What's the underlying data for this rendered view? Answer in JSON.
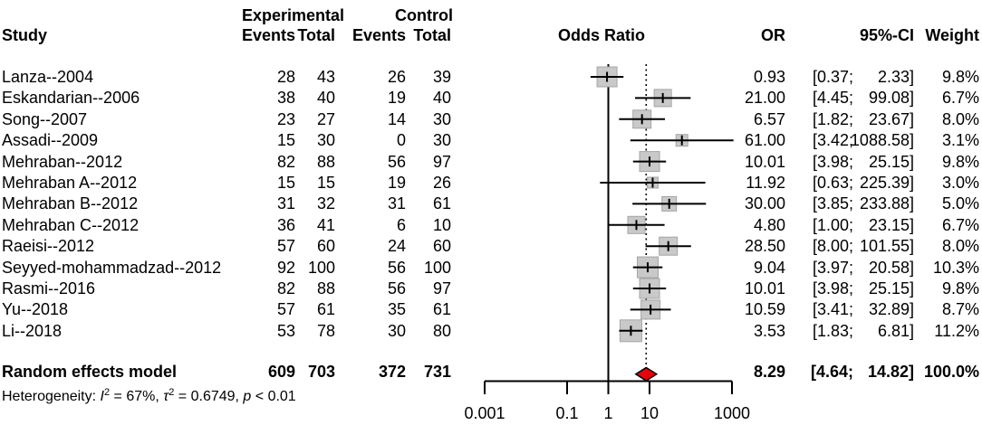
{
  "header": {
    "study": "Study",
    "experimental": "Experimental",
    "control": "Control",
    "events": "Events",
    "total": "Total",
    "odds_ratio": "Odds Ratio",
    "or": "OR",
    "ci": "95%-CI",
    "weight": "Weight"
  },
  "chart_data": {
    "type": "forest",
    "x_scale": "log10",
    "x_axis": {
      "tick_labels": [
        "0.001",
        "0.1",
        "1",
        "10",
        "1000"
      ],
      "tick_values": [
        0.001,
        0.1,
        1,
        10,
        1000
      ],
      "ref_line": 1,
      "summary_dotted_line": 8.29
    },
    "studies": [
      {
        "name": "Lanza--2004",
        "exp_events": "28",
        "exp_total": "43",
        "ctrl_events": "26",
        "ctrl_total": "39",
        "or": 0.93,
        "ci_low": 0.37,
        "ci_high": 2.33,
        "or_text": "0.93",
        "ci_low_text": "[0.37;",
        "ci_high_text": "2.33]",
        "weight": 9.8,
        "weight_text": "9.8%"
      },
      {
        "name": "Eskandarian--2006",
        "exp_events": "38",
        "exp_total": "40",
        "ctrl_events": "19",
        "ctrl_total": "40",
        "or": 21.0,
        "ci_low": 4.45,
        "ci_high": 99.08,
        "or_text": "21.00",
        "ci_low_text": "[4.45;",
        "ci_high_text": "99.08]",
        "weight": 6.7,
        "weight_text": "6.7%"
      },
      {
        "name": "Song--2007",
        "exp_events": "23",
        "exp_total": "27",
        "ctrl_events": "14",
        "ctrl_total": "30",
        "or": 6.57,
        "ci_low": 1.82,
        "ci_high": 23.67,
        "or_text": "6.57",
        "ci_low_text": "[1.82;",
        "ci_high_text": "23.67]",
        "weight": 8.0,
        "weight_text": "8.0%"
      },
      {
        "name": "Assadi--2009",
        "exp_events": "15",
        "exp_total": "30",
        "ctrl_events": "0",
        "ctrl_total": "30",
        "or": 61.0,
        "ci_low": 3.42,
        "ci_high": 1088.58,
        "or_text": "61.00",
        "ci_low_text": "[3.42;",
        "ci_high_text": "1088.58]",
        "weight": 3.1,
        "weight_text": "3.1%"
      },
      {
        "name": "Mehraban--2012",
        "exp_events": "82",
        "exp_total": "88",
        "ctrl_events": "56",
        "ctrl_total": "97",
        "or": 10.01,
        "ci_low": 3.98,
        "ci_high": 25.15,
        "or_text": "10.01",
        "ci_low_text": "[3.98;",
        "ci_high_text": "25.15]",
        "weight": 9.8,
        "weight_text": "9.8%"
      },
      {
        "name": "Mehraban A--2012",
        "exp_events": "15",
        "exp_total": "15",
        "ctrl_events": "19",
        "ctrl_total": "26",
        "or": 11.92,
        "ci_low": 0.63,
        "ci_high": 225.39,
        "or_text": "11.92",
        "ci_low_text": "[0.63;",
        "ci_high_text": "225.39]",
        "weight": 3.0,
        "weight_text": "3.0%"
      },
      {
        "name": "Mehraban B--2012",
        "exp_events": "31",
        "exp_total": "32",
        "ctrl_events": "31",
        "ctrl_total": "61",
        "or": 30.0,
        "ci_low": 3.85,
        "ci_high": 233.88,
        "or_text": "30.00",
        "ci_low_text": "[3.85;",
        "ci_high_text": "233.88]",
        "weight": 5.0,
        "weight_text": "5.0%"
      },
      {
        "name": "Mehraban C--2012",
        "exp_events": "36",
        "exp_total": "41",
        "ctrl_events": "6",
        "ctrl_total": "10",
        "or": 4.8,
        "ci_low": 1.0,
        "ci_high": 23.15,
        "or_text": "4.80",
        "ci_low_text": "[1.00;",
        "ci_high_text": "23.15]",
        "weight": 6.7,
        "weight_text": "6.7%"
      },
      {
        "name": "Raeisi--2012",
        "exp_events": "57",
        "exp_total": "60",
        "ctrl_events": "24",
        "ctrl_total": "60",
        "or": 28.5,
        "ci_low": 8.0,
        "ci_high": 101.55,
        "or_text": "28.50",
        "ci_low_text": "[8.00;",
        "ci_high_text": "101.55]",
        "weight": 8.0,
        "weight_text": "8.0%"
      },
      {
        "name": "Seyyed-mohammadzad--2012",
        "exp_events": "92",
        "exp_total": "100",
        "ctrl_events": "56",
        "ctrl_total": "100",
        "or": 9.04,
        "ci_low": 3.97,
        "ci_high": 20.58,
        "or_text": "9.04",
        "ci_low_text": "[3.97;",
        "ci_high_text": "20.58]",
        "weight": 10.3,
        "weight_text": "10.3%"
      },
      {
        "name": "Rasmi--2016",
        "exp_events": "82",
        "exp_total": "88",
        "ctrl_events": "56",
        "ctrl_total": "97",
        "or": 10.01,
        "ci_low": 3.98,
        "ci_high": 25.15,
        "or_text": "10.01",
        "ci_low_text": "[3.98;",
        "ci_high_text": "25.15]",
        "weight": 9.8,
        "weight_text": "9.8%"
      },
      {
        "name": "Yu--2018",
        "exp_events": "57",
        "exp_total": "61",
        "ctrl_events": "35",
        "ctrl_total": "61",
        "or": 10.59,
        "ci_low": 3.41,
        "ci_high": 32.89,
        "or_text": "10.59",
        "ci_low_text": "[3.41;",
        "ci_high_text": "32.89]",
        "weight": 8.7,
        "weight_text": "8.7%"
      },
      {
        "name": "Li--2018",
        "exp_events": "53",
        "exp_total": "78",
        "ctrl_events": "30",
        "ctrl_total": "80",
        "or": 3.53,
        "ci_low": 1.83,
        "ci_high": 6.81,
        "or_text": "3.53",
        "ci_low_text": "[1.83;",
        "ci_high_text": "6.81]",
        "weight": 11.2,
        "weight_text": "11.2%"
      }
    ],
    "summary": {
      "label": "Random effects model",
      "exp_events": "609",
      "exp_total": "703",
      "ctrl_events": "372",
      "ctrl_total": "731",
      "or": 8.29,
      "ci_low": 4.64,
      "ci_high": 14.82,
      "or_text": "8.29",
      "ci_low_text": "[4.64;",
      "ci_high_text": "14.82]",
      "weight_text": "100.0%"
    },
    "heterogeneity_parts": [
      "Heterogeneity: ",
      "I",
      "2",
      " = 67%, ",
      "τ",
      "2",
      " = 0.6749, ",
      "p",
      " < 0.01"
    ]
  },
  "colors": {
    "square_fill": "#c9c9c9",
    "square_border": "#a5a5a5",
    "diamond_fill": "#e8000b",
    "diamond_border": "#000000",
    "line": "#000000",
    "text": "#000000",
    "background": "#ffffff"
  }
}
